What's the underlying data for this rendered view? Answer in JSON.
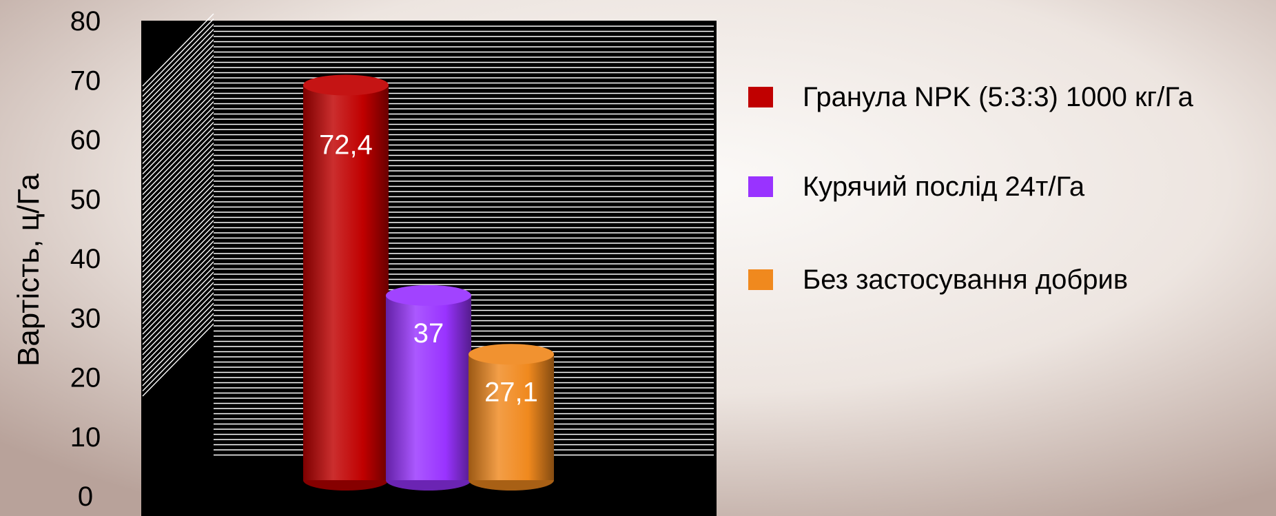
{
  "chart_data": {
    "type": "bar",
    "style": "3d-cylinder",
    "categories": [
      ""
    ],
    "series": [
      {
        "name": "Гранула NPK (5:3:3) 1000 кг/Га",
        "values": [
          72.4
        ],
        "label": "72,4",
        "color": "#C00000"
      },
      {
        "name": "Курячий послід 24т/Га",
        "values": [
          37
        ],
        "label": "37",
        "color": "#9933FF"
      },
      {
        "name": "Без застосування добрив",
        "values": [
          27.1
        ],
        "label": "27,1",
        "color": "#F0891E"
      }
    ],
    "ylabel": "Вартість, ц/Га",
    "xlabel": "",
    "ylim": [
      0,
      80
    ],
    "yticks": [
      "0",
      "10",
      "20",
      "30",
      "40",
      "50",
      "60",
      "70",
      "80"
    ],
    "grid": true,
    "legend": "right",
    "background": {
      "light": "#FBF9F7",
      "dark": "#B8A29A"
    },
    "plot_background": "#000000",
    "grid_color": "#FFFFFF"
  }
}
